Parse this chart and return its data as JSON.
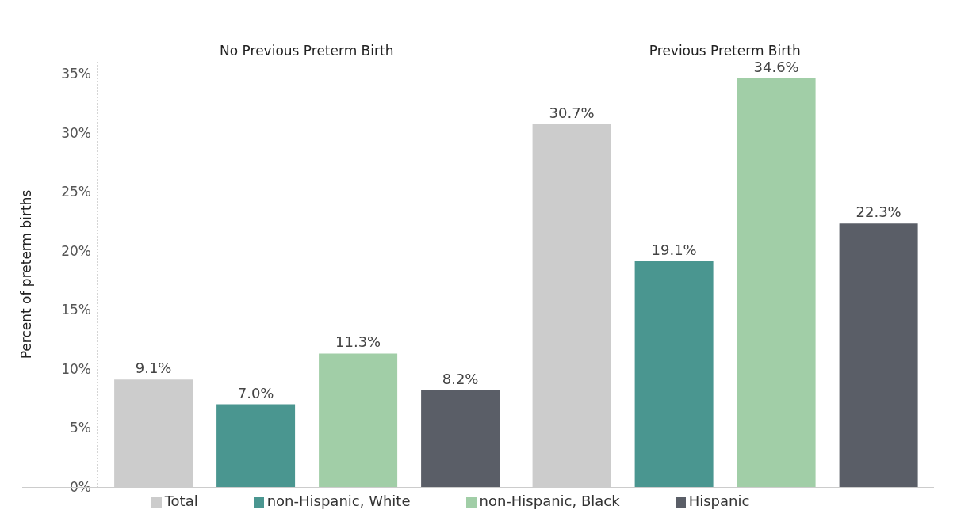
{
  "chart_data": {
    "type": "bar",
    "ylabel": "Percent of preterm births",
    "categories": [
      "No Previous Preterm Birth",
      "Previous Preterm Birth"
    ],
    "series": [
      {
        "name": "Total",
        "color": "#cccccc",
        "values": [
          9.1,
          30.7
        ],
        "value_labels": [
          "9.1%",
          "30.7%"
        ]
      },
      {
        "name": "non-Hispanic, White",
        "color": "#4a9690",
        "values": [
          7.0,
          19.1
        ],
        "value_labels": [
          "7.0%",
          "19.1%"
        ]
      },
      {
        "name": "non-Hispanic, Black",
        "color": "#a1cea7",
        "values": [
          11.3,
          34.6
        ],
        "value_labels": [
          "11.3%",
          "34.6%"
        ]
      },
      {
        "name": "Hispanic",
        "color": "#5a5e67",
        "values": [
          8.2,
          22.3
        ],
        "value_labels": [
          "8.2%",
          "22.3%"
        ]
      }
    ],
    "ylim": [
      0,
      36
    ],
    "yticks": [
      {
        "value": 0,
        "label": "0%"
      },
      {
        "value": 5,
        "label": "5%"
      },
      {
        "value": 10,
        "label": "10%"
      },
      {
        "value": 15,
        "label": "15%"
      },
      {
        "value": 20,
        "label": "20%"
      },
      {
        "value": 25,
        "label": "25%"
      },
      {
        "value": 30,
        "label": "30%"
      },
      {
        "value": 35,
        "label": "35%"
      }
    ],
    "grid": false,
    "legend": "bottom"
  }
}
